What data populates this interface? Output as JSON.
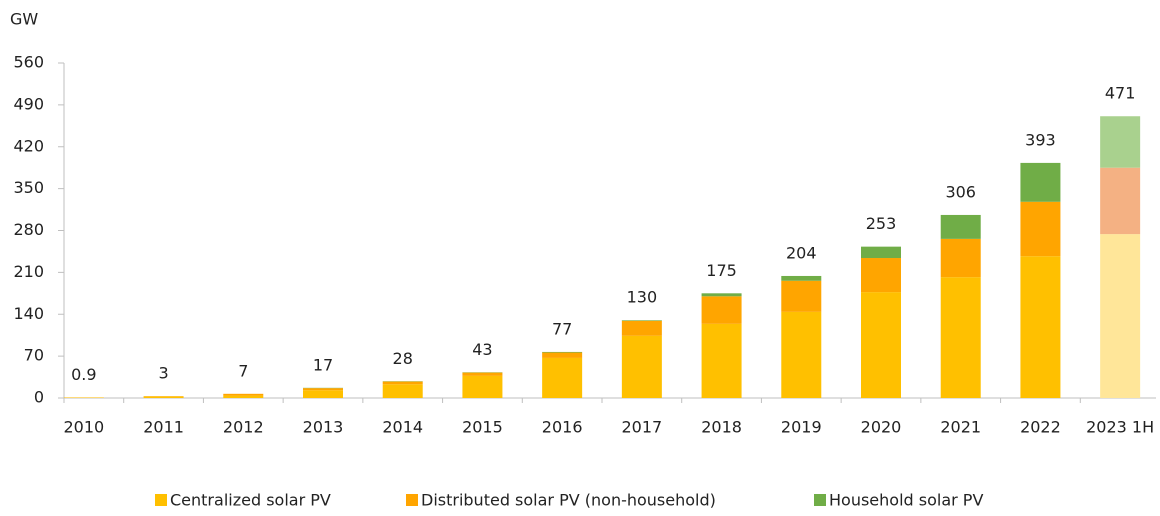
{
  "chart_data": {
    "type": "stacked_bar",
    "y_label": "GW",
    "categories": [
      "2010",
      "2011",
      "2012",
      "2013",
      "2014",
      "2015",
      "2016",
      "2017",
      "2018",
      "2019",
      "2020",
      "2021",
      "2022",
      "2023 1H"
    ],
    "series": [
      {
        "name": "Centralized solar PV",
        "color": "#ffc000",
        "colors": [
          "#ffc000",
          "#ffc000",
          "#ffc000",
          "#ffc000",
          "#ffc000",
          "#ffc000",
          "#ffc000",
          "#ffc000",
          "#ffc000",
          "#ffc000",
          "#ffc000",
          "#ffc000",
          "#ffc000",
          "#ffe699"
        ],
        "values": [
          0.8,
          2.5,
          4,
          13,
          23,
          37,
          67,
          104,
          124,
          144,
          177,
          202,
          237,
          274
        ]
      },
      {
        "name": "Distributed solar PV (non-household)",
        "color": "#ffa500",
        "colors": [
          "#ffa500",
          "#ffa500",
          "#ffa500",
          "#ffa500",
          "#ffa500",
          "#ffa500",
          "#ffa500",
          "#ffa500",
          "#ffa500",
          "#ffa500",
          "#ffa500",
          "#ffa500",
          "#ffa500",
          "#f4b183"
        ],
        "values": [
          0.1,
          0.5,
          3,
          3.5,
          4.5,
          5.5,
          9,
          25,
          46,
          52,
          57,
          64,
          91,
          111
        ]
      },
      {
        "name": "Household solar PV",
        "color": "#70ad47",
        "colors": [
          "#70ad47",
          "#70ad47",
          "#70ad47",
          "#70ad47",
          "#70ad47",
          "#70ad47",
          "#70ad47",
          "#70ad47",
          "#70ad47",
          "#70ad47",
          "#70ad47",
          "#70ad47",
          "#70ad47",
          "#a9d18e"
        ],
        "values": [
          0,
          0,
          0,
          0.5,
          0.5,
          0.5,
          1,
          1,
          5,
          8,
          19,
          40,
          65,
          86
        ]
      }
    ],
    "totals": [
      0.9,
      3,
      7,
      17,
      28,
      43,
      77,
      130,
      175,
      204,
      253,
      306,
      393,
      471
    ],
    "ylim": [
      0,
      560
    ],
    "yticks": [
      0,
      70,
      140,
      210,
      280,
      350,
      420,
      490,
      560
    ],
    "legend": "bottom"
  }
}
